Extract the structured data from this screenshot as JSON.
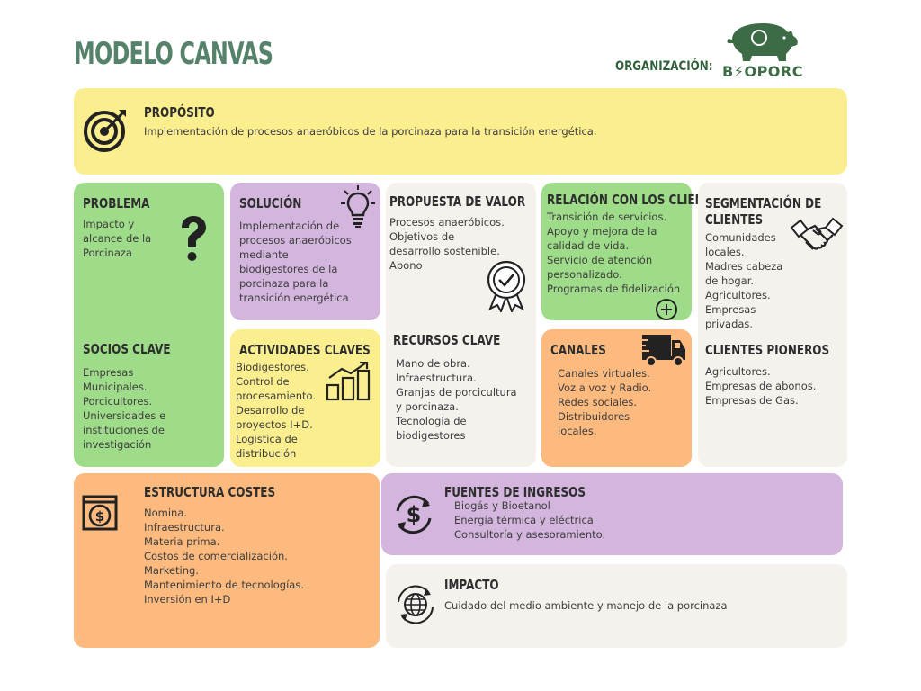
{
  "header": {
    "title": "MODELO CANVAS",
    "org_label": "ORGANIZACIÓN:",
    "logo_text": "B⚡OPORC"
  },
  "proposito": {
    "title": "PROPÓSITO",
    "text": "Implementación de procesos anaeróbicos de la porcinaza para la transición energética."
  },
  "problema": {
    "title": "PROBLEMA",
    "lines": [
      "Impacto y",
      "alcance de la",
      "Porcinaza"
    ]
  },
  "socios": {
    "title": "SOCIOS CLAVE",
    "lines": [
      "Empresas",
      "Municipales.",
      "Porcicultores.",
      "Universidades e",
      "instituciones de",
      "investigación"
    ]
  },
  "solucion": {
    "title": "SOLUCIÓN",
    "lines": [
      "Implementación de",
      "procesos anaeróbicos",
      "mediante",
      "biodigestores de la",
      "porcinaza para la",
      "transición energética"
    ]
  },
  "actividades": {
    "title": "ACTIVIDADES CLAVES",
    "lines": [
      "Biodigestores.",
      "Control de",
      "procesamiento.",
      "Desarrollo de",
      "proyectos I+D.",
      "Logistica de",
      "distribución"
    ]
  },
  "propuesta": {
    "title": "PROPUESTA DE VALOR",
    "lines": [
      "Procesos anaeróbicos.",
      "Objetivos de",
      "desarrollo sostenible.",
      "Abono"
    ]
  },
  "recursos": {
    "title": "RECURSOS CLAVE",
    "lines": [
      "Mano de obra.",
      "Infraestructura.",
      "Granjas de porcicultura",
      "y porcinaza.",
      "Tecnología de",
      "biodigestores"
    ]
  },
  "relacion": {
    "title": "RELACIÓN CON LOS CLIENTES",
    "lines": [
      "Transición de servicios.",
      "Apoyo y mejora de la",
      "calidad de vida.",
      "Servicio de atención",
      "personalizado.",
      "Programas de fidelización"
    ]
  },
  "canales": {
    "title": "CANALES",
    "lines": [
      "Canales virtuales.",
      "Voz a voz y Radio.",
      "Redes sociales.",
      "Distribuidores",
      "locales."
    ]
  },
  "segmentacion": {
    "title_lines": [
      "SEGMENTACIÓN DE",
      "CLIENTES"
    ],
    "lines": [
      "Comunidades",
      "locales.",
      "Madres cabeza",
      "de hogar.",
      "Agricultores.",
      "Empresas",
      "privadas."
    ]
  },
  "pioneros": {
    "title": "CLIENTES PIONEROS",
    "lines": [
      "Agricultores.",
      "Empresas de abonos.",
      "Empresas de Gas."
    ]
  },
  "costes": {
    "title": "ESTRUCTURA COSTES",
    "lines": [
      "Nomina.",
      "Infraestructura.",
      "Materia prima.",
      "Costos de comercialización.",
      "Marketing.",
      "Mantenimiento de tecnologías.",
      "Inversión en I+D"
    ]
  },
  "ingresos": {
    "title": "FUENTES DE INGRESOS",
    "lines": [
      "Biogás y Bioetanol",
      "Energía térmica y eléctrica",
      "Consultoría y asesoramiento."
    ]
  },
  "impacto": {
    "title": "IMPACTO",
    "text": "Cuidado del medio ambiente y manejo de la porcinaza"
  },
  "colors": {
    "yellow": "#fbee8e",
    "green": "#9fdc8a",
    "purple": "#d3b5de",
    "beige": "#f5f1ed",
    "orange": "#fcba7f",
    "title_green": "#55826a"
  }
}
